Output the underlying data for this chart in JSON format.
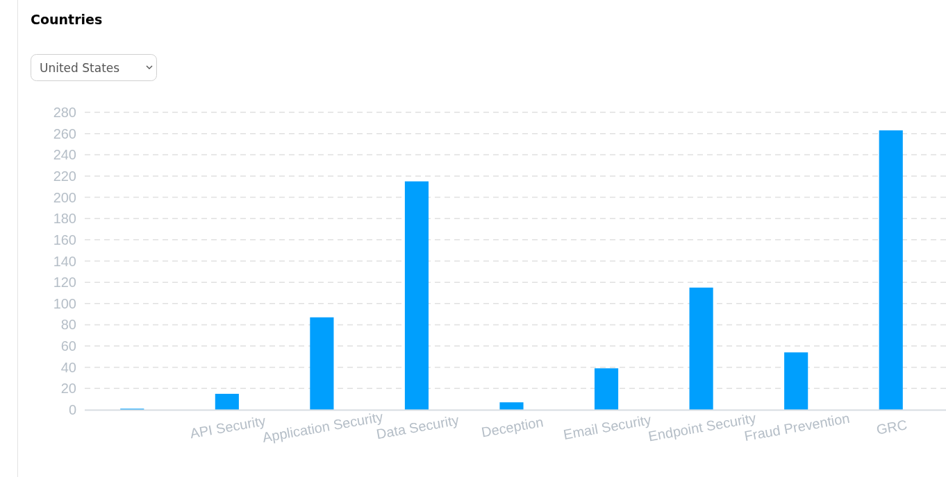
{
  "chart_data": {
    "type": "bar",
    "title": "Countries",
    "subtitle": "United States",
    "categories": [
      null,
      "API Security",
      "Application Security",
      "Data Security",
      "Deception",
      "Email Security",
      "Endpoint Security",
      "Fraud Prevention",
      "GRC"
    ],
    "values": [
      1,
      15,
      87,
      215,
      7,
      39,
      115,
      54,
      263
    ],
    "color": "#009ffd",
    "ylim": [
      0,
      280
    ],
    "yticks": [
      0,
      20,
      40,
      60,
      80,
      100,
      120,
      140,
      160,
      180,
      200,
      220,
      240,
      260,
      280
    ],
    "grid": "y"
  }
}
